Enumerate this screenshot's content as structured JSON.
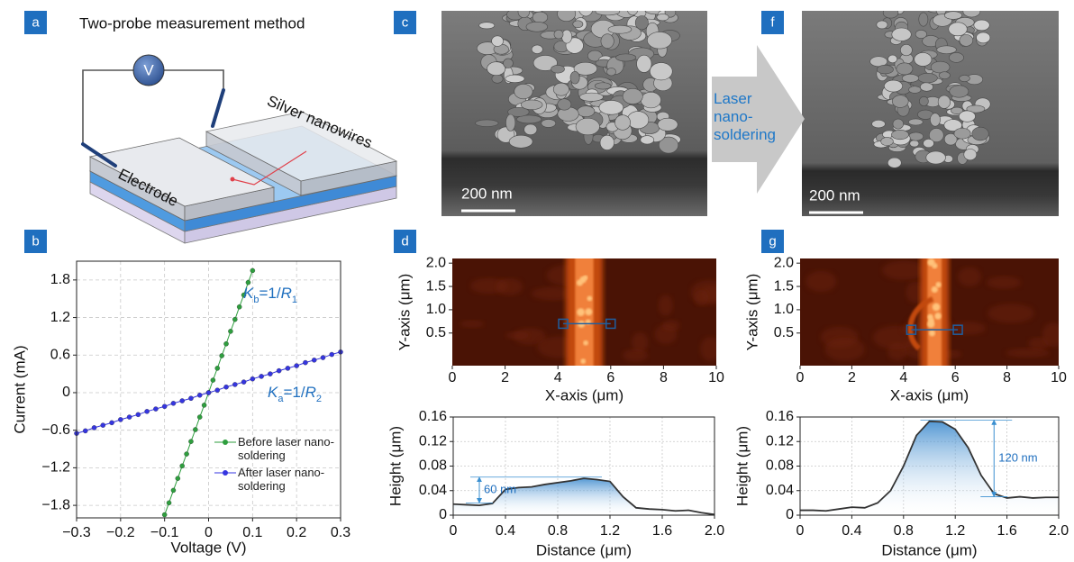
{
  "panel_labels": [
    "a",
    "b",
    "c",
    "d",
    "f",
    "g"
  ],
  "schematic": {
    "title": "Two-probe measurement method",
    "meter": "V",
    "nanowire_label": "Silver nanowires",
    "electrode_label": "Electrode"
  },
  "sem": [
    {
      "scale_bar": "200 nm"
    },
    {
      "scale_bar": "200 nm"
    }
  ],
  "process_arrow": "Laser nano-soldering",
  "chart_data": [
    {
      "type": "line",
      "x_label": "Voltage (V)",
      "y_label": "Current (mA)",
      "xlim": [
        -0.3,
        0.3
      ],
      "ylim": [
        -2,
        2.1
      ],
      "xticks": [
        {
          "value": -0.3,
          "label": "−0.3"
        },
        {
          "value": -0.2,
          "label": "−0.2"
        },
        {
          "value": -0.1,
          "label": "−0.1"
        },
        0,
        0.1,
        0.2,
        0.3
      ],
      "yticks": [
        {
          "value": -1.8,
          "label": "−1.8"
        },
        {
          "value": -1.2,
          "label": "−1.2"
        },
        {
          "value": -0.6,
          "label": "−0.6"
        },
        0,
        0.6,
        1.2,
        1.8
      ],
      "grid": true,
      "legend": "lower right",
      "series": [
        {
          "name": "Before laser nano-soldering",
          "color": "#2e9e3e",
          "x": [
            -0.1,
            -0.09,
            -0.08,
            -0.07,
            -0.06,
            -0.05,
            -0.04,
            -0.03,
            -0.02,
            -0.01,
            0,
            0.01,
            0.02,
            0.03,
            0.04,
            0.05,
            0.06,
            0.07,
            0.08,
            0.09,
            0.1
          ],
          "values": [
            -1.95,
            -1.76,
            -1.56,
            -1.37,
            -1.17,
            -0.98,
            -0.78,
            -0.59,
            -0.39,
            -0.2,
            0,
            0.2,
            0.39,
            0.59,
            0.78,
            0.98,
            1.17,
            1.37,
            1.56,
            1.76,
            1.95
          ]
        },
        {
          "name": "After laser nano-soldering",
          "color": "#3535e0",
          "x": [
            -0.3,
            -0.28,
            -0.26,
            -0.24,
            -0.22,
            -0.2,
            -0.18,
            -0.16,
            -0.14,
            -0.12,
            -0.1,
            -0.08,
            -0.06,
            -0.04,
            -0.02,
            0,
            0.02,
            0.04,
            0.06,
            0.08,
            0.1,
            0.12,
            0.14,
            0.16,
            0.18,
            0.2,
            0.22,
            0.24,
            0.26,
            0.28,
            0.3
          ],
          "values": [
            -0.65,
            -0.61,
            -0.56,
            -0.52,
            -0.48,
            -0.43,
            -0.39,
            -0.35,
            -0.3,
            -0.26,
            -0.22,
            -0.17,
            -0.13,
            -0.09,
            -0.04,
            0,
            0.04,
            0.09,
            0.13,
            0.17,
            0.22,
            0.26,
            0.3,
            0.35,
            0.39,
            0.43,
            0.48,
            0.52,
            0.56,
            0.61,
            0.65
          ]
        }
      ],
      "annotations": [
        {
          "parts": [
            "K",
            "b",
            "=1/",
            "R",
            "1"
          ]
        },
        {
          "parts": [
            "K",
            "a",
            "=1/",
            "R",
            "2"
          ]
        }
      ]
    },
    {
      "type": "image",
      "x_label": "X-axis (μm)",
      "y_label": "Y-axis (μm)",
      "xlim": [
        0,
        10
      ],
      "ylim": [
        -0.2,
        2.1
      ],
      "xticks": [
        0,
        2,
        4,
        6,
        8,
        10
      ],
      "yticks": [
        0.5,
        {
          "value": 1,
          "label": "1.0"
        },
        1.5,
        {
          "value": 2,
          "label": "2.0"
        }
      ],
      "grid": false,
      "profile_line": {
        "x": [
          4.2,
          6
        ],
        "y": 0.7
      }
    },
    {
      "type": "area",
      "x_label": "Distance (μm)",
      "y_label": "Height (μm)",
      "xlim": [
        0,
        2
      ],
      "ylim": [
        0,
        0.16
      ],
      "xticks": [
        0,
        0.4,
        0.8,
        1.2,
        1.6,
        {
          "value": 2,
          "label": "2.0"
        }
      ],
      "yticks": [
        0,
        0.04,
        0.08,
        0.12,
        0.16
      ],
      "grid": true,
      "color": "#333333",
      "x": [
        0,
        0.1,
        0.2,
        0.3,
        0.4,
        0.5,
        0.6,
        0.7,
        0.8,
        0.9,
        1,
        1.1,
        1.2,
        1.3,
        1.4,
        1.5,
        1.6,
        1.7,
        1.8,
        1.9,
        2
      ],
      "values": [
        0.018,
        0.017,
        0.016,
        0.019,
        0.042,
        0.045,
        0.046,
        0.05,
        0.053,
        0.056,
        0.06,
        0.058,
        0.055,
        0.03,
        0.012,
        0.01,
        0.009,
        0.007,
        0.008,
        0.004,
        0.001
      ],
      "annotation": {
        "label": "60 nm",
        "x": 0.2,
        "y_from": 0.02,
        "y_to": 0.062
      }
    },
    {
      "type": "image",
      "x_label": "X-axis (μm)",
      "y_label": "Y-axis (μm)",
      "xlim": [
        0,
        10
      ],
      "ylim": [
        -0.2,
        2.1
      ],
      "xticks": [
        0,
        2,
        4,
        6,
        8,
        10
      ],
      "yticks": [
        0.5,
        {
          "value": 1,
          "label": "1.0"
        },
        1.5,
        {
          "value": 2,
          "label": "2.0"
        }
      ],
      "grid": false,
      "profile_line": {
        "x": [
          4.3,
          6.1
        ],
        "y": 0.57
      }
    },
    {
      "type": "area",
      "x_label": "Distance (μm)",
      "y_label": "Height (μm)",
      "xlim": [
        0,
        2
      ],
      "ylim": [
        0,
        0.16
      ],
      "xticks": [
        0,
        0.4,
        0.8,
        1.2,
        1.6,
        {
          "value": 2,
          "label": "2.0"
        }
      ],
      "yticks": [
        0,
        0.04,
        0.08,
        0.12,
        0.16
      ],
      "grid": true,
      "color": "#333333",
      "x": [
        0,
        0.1,
        0.2,
        0.3,
        0.4,
        0.5,
        0.6,
        0.7,
        0.8,
        0.9,
        1,
        1.1,
        1.2,
        1.3,
        1.4,
        1.5,
        1.6,
        1.7,
        1.8,
        1.9,
        2
      ],
      "values": [
        0.008,
        0.008,
        0.007,
        0.01,
        0.013,
        0.012,
        0.02,
        0.04,
        0.08,
        0.13,
        0.153,
        0.152,
        0.14,
        0.11,
        0.065,
        0.035,
        0.028,
        0.03,
        0.028,
        0.029,
        0.029
      ],
      "annotation": {
        "label": "120 nm",
        "x": 1.5,
        "y_from": 0.03,
        "y_to": 0.155
      }
    }
  ]
}
